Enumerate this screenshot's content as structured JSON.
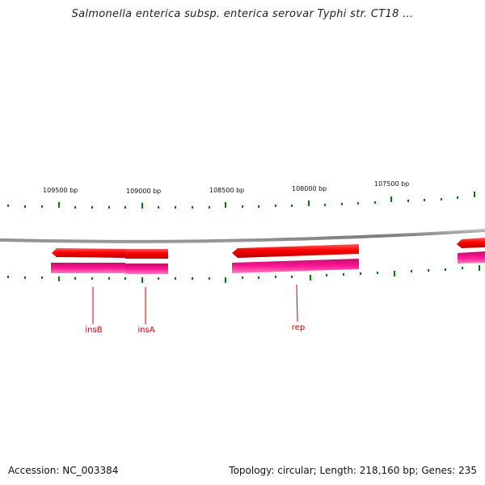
{
  "header": {
    "title": "Salmonella enterica subsp. enterica serovar Typhi str. CT18 ..."
  },
  "footer": {
    "accession": "Accession: NC_003384",
    "summary": "Topology: circular; Length: 218,160 bp; Genes: 235"
  },
  "map": {
    "ruler_labels": [
      "109500 bp",
      "109000 bp",
      "108500 bp",
      "108000 bp",
      "107500 bp"
    ],
    "gene_labels": [
      "insB",
      "insA",
      "rep"
    ],
    "colors": {
      "backbone": "#808080",
      "forward_feature": "#ff0000",
      "reverse_feature": "#ff1493",
      "ticks": "#008000",
      "gene_label": "#cc0000"
    }
  }
}
